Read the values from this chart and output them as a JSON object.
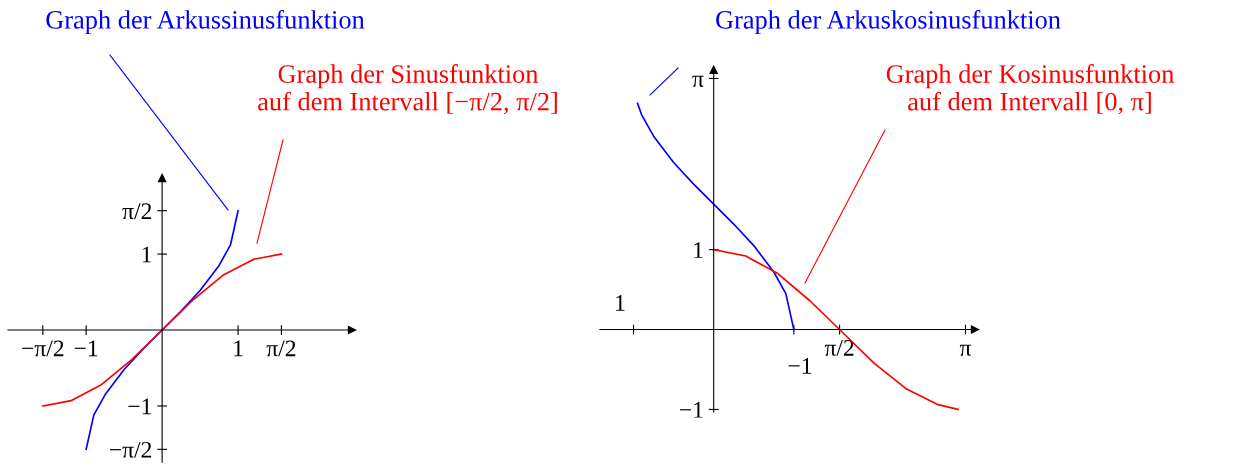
{
  "chart_data": [
    {
      "type": "line",
      "xlim": [
        -2.03,
        2.5
      ],
      "ylim": [
        -1.74,
        2.0
      ],
      "xticks": [
        {
          "value": -1.5708,
          "label": "−π/2"
        },
        {
          "value": -1,
          "label": "−1"
        },
        1,
        {
          "value": 1.5708,
          "label": "π/2"
        }
      ],
      "yticks": [
        {
          "value": -1.5708,
          "label": "−π/2"
        },
        {
          "value": -1,
          "label": "−1"
        },
        1,
        {
          "value": 1.5708,
          "label": "π/2"
        }
      ],
      "series": [
        {
          "color": "#0000ff",
          "x": [
            -1,
            -0.9,
            -0.75,
            -0.5,
            -0.25,
            0,
            0.25,
            0.5,
            0.75,
            0.9,
            1
          ],
          "values": [
            -1.57,
            -1.12,
            -0.85,
            -0.52,
            -0.25,
            0,
            0.25,
            0.52,
            0.85,
            1.12,
            1.57
          ]
        },
        {
          "color": "#ff0000",
          "x": [
            -1.57,
            -1.2,
            -0.8,
            -0.4,
            0,
            0.4,
            0.8,
            1.2,
            1.57
          ],
          "values": [
            -1,
            -0.93,
            -0.72,
            -0.39,
            0,
            0.39,
            0.72,
            0.93,
            1
          ]
        }
      ],
      "annotations": [
        "Graph der Arkussinusfunktion",
        "Graph der Sinusfunktion\nauf dem Intervall [−π/2, π/2]"
      ]
    },
    {
      "type": "line",
      "xlim": [
        -1.42,
        3.26
      ],
      "ylim": [
        -1.03,
        3.25
      ],
      "xticks": [
        {
          "value": -1,
          "label": null
        },
        {
          "value": 1,
          "label": null
        },
        {
          "value": 1.5708,
          "label": "π/2"
        },
        {
          "value": 3.1416,
          "label": "π"
        }
      ],
      "yticks": [
        {
          "value": -1,
          "label": "−1"
        },
        1,
        {
          "value": 3.1416,
          "label": "π"
        }
      ],
      "series": [
        {
          "color": "#0000ff",
          "x": [
            -0.95,
            -0.9,
            -0.75,
            -0.5,
            -0.25,
            0,
            0.25,
            0.5,
            0.75,
            0.9,
            1
          ],
          "values": [
            2.83,
            2.69,
            2.42,
            2.09,
            1.82,
            1.57,
            1.32,
            1.05,
            0.72,
            0.45,
            0
          ]
        },
        {
          "color": "#ff0000",
          "x": [
            0,
            0.4,
            0.8,
            1.2,
            1.57,
            2.0,
            2.4,
            2.8,
            3.05
          ],
          "values": [
            1,
            0.92,
            0.7,
            0.36,
            0,
            -0.42,
            -0.74,
            -0.94,
            -1
          ]
        }
      ],
      "annotations": [
        "Graph der Arkuskosinusfunktion",
        "Graph der Kosinusfunktion\nauf dem Intervall [0, π]",
        "1",
        "−1"
      ]
    }
  ]
}
